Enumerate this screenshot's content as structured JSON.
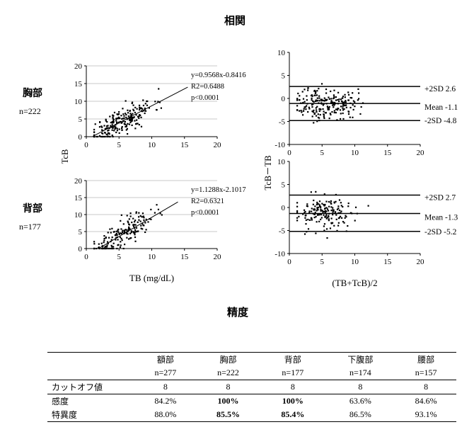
{
  "headings": {
    "correlation": "相関",
    "accuracy": "精度"
  },
  "sites": [
    {
      "name": "胸部",
      "n": "n=222"
    },
    {
      "name": "背部",
      "n": "n=177"
    }
  ],
  "chart_data": [
    {
      "type": "scatter",
      "id": "chest-correlation",
      "ylabel": "TcB",
      "xlim": [
        0,
        20
      ],
      "ylim": [
        0,
        20
      ],
      "xticks": [
        0,
        5,
        10,
        15,
        20
      ],
      "yticks": [
        0,
        5,
        10,
        15,
        20
      ],
      "grid": "horizontal",
      "regression": {
        "slope": 0.9568,
        "intercept": -0.8416,
        "x_range": [
          1,
          15.5
        ]
      },
      "annotations": [
        "y=0.9568x-0.8416",
        "R2=0.6488",
        "p<0.0001"
      ],
      "seed": 11,
      "n_points": 222
    },
    {
      "type": "scatter",
      "id": "back-correlation",
      "xlabel": "TB (mg/dL)",
      "xlim": [
        0,
        20
      ],
      "ylim": [
        0,
        20
      ],
      "xticks": [
        0,
        5,
        10,
        15,
        20
      ],
      "yticks": [
        0,
        5,
        10,
        15,
        20
      ],
      "grid": "horizontal",
      "regression": {
        "slope": 1.1288,
        "intercept": -2.1017,
        "x_range": [
          1.9,
          14
        ]
      },
      "annotations": [
        "y=1.1288x-2.1017",
        "R2=0.6321",
        "p<0.0001"
      ],
      "seed": 23,
      "n_points": 177
    },
    {
      "type": "scatter",
      "id": "chest-bland-altman",
      "ylabel": "TcB－TB",
      "xlim": [
        0,
        20
      ],
      "ylim": [
        -10,
        10
      ],
      "xticks": [
        0,
        5,
        10,
        15,
        20
      ],
      "yticks": [
        -10,
        -5,
        0,
        5,
        10
      ],
      "lines": [
        {
          "label": "+2SD  2.6",
          "y": 2.6
        },
        {
          "label": "Mean -1.1",
          "y": -1.1
        },
        {
          "label": "-2SD -4.8",
          "y": -4.8
        }
      ],
      "seed": 37,
      "n_points": 222
    },
    {
      "type": "scatter",
      "id": "back-bland-altman",
      "xlabel": "(TB+TcB)/2",
      "xlim": [
        0,
        20
      ],
      "ylim": [
        -10,
        10
      ],
      "xticks": [
        0,
        5,
        10,
        15,
        20
      ],
      "yticks": [
        -10,
        -5,
        0,
        5,
        10
      ],
      "lines": [
        {
          "label": "+2SD  2.7",
          "y": 2.7
        },
        {
          "label": "Mean -1.3",
          "y": -1.3
        },
        {
          "label": "-2SD -5.2",
          "y": -5.2
        }
      ],
      "seed": 53,
      "n_points": 177
    }
  ],
  "accuracy_table": {
    "columns": [
      {
        "site": "額部",
        "n": "n=277"
      },
      {
        "site": "胸部",
        "n": "n=222"
      },
      {
        "site": "背部",
        "n": "n=177"
      },
      {
        "site": "下腹部",
        "n": "n=174"
      },
      {
        "site": "腰部",
        "n": "n=157"
      }
    ],
    "rows": [
      {
        "label": "カットオフ値",
        "values": [
          "8",
          "8",
          "8",
          "8",
          "8"
        ],
        "bold": [
          false,
          false,
          false,
          false,
          false
        ]
      },
      {
        "label": "感度",
        "values": [
          "84.2%",
          "100%",
          "100%",
          "63.6%",
          "84.6%"
        ],
        "bold": [
          false,
          true,
          true,
          false,
          false
        ]
      },
      {
        "label": "特異度",
        "values": [
          "88.0%",
          "85.5%",
          "85.4%",
          "86.5%",
          "93.1%"
        ],
        "bold": [
          false,
          true,
          true,
          false,
          false
        ]
      }
    ]
  }
}
